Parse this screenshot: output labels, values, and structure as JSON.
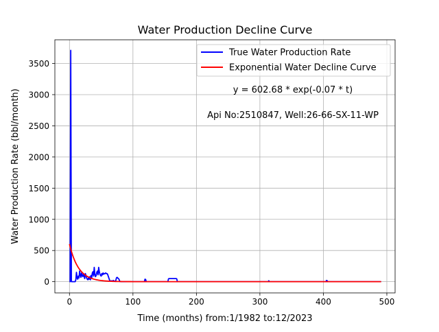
{
  "chart_data": {
    "type": "line",
    "title": "Water Production Decline Curve",
    "xlabel": "Time (months) from:1/1982 to:12/2023",
    "ylabel": "Water Production Rate (bbl/month)",
    "xlim": [
      -23,
      513
    ],
    "ylim": [
      -180,
      3880
    ],
    "xticks": [
      0,
      100,
      200,
      300,
      400,
      500
    ],
    "yticks": [
      0,
      500,
      1000,
      1500,
      2000,
      2500,
      3000,
      3500
    ],
    "grid": true,
    "legend_position": "top-right",
    "annotations": [
      "y = 602.68 * exp(-0.07 * t)",
      "Api No:2510847, Well:26-66-SX-11-WP"
    ],
    "series": [
      {
        "name": "True Water Production Rate",
        "color": "#0000ff",
        "points": [
          [
            0,
            0
          ],
          [
            1,
            0
          ],
          [
            2,
            3710
          ],
          [
            3,
            0
          ],
          [
            4,
            0
          ],
          [
            5,
            0
          ],
          [
            6,
            0
          ],
          [
            7,
            0
          ],
          [
            8,
            0
          ],
          [
            9,
            0
          ],
          [
            10,
            30
          ],
          [
            11,
            150
          ],
          [
            12,
            60
          ],
          [
            13,
            40
          ],
          [
            14,
            90
          ],
          [
            15,
            60
          ],
          [
            16,
            170
          ],
          [
            17,
            110
          ],
          [
            18,
            70
          ],
          [
            19,
            140
          ],
          [
            20,
            100
          ],
          [
            21,
            80
          ],
          [
            22,
            130
          ],
          [
            23,
            90
          ],
          [
            24,
            50
          ],
          [
            25,
            130
          ],
          [
            26,
            100
          ],
          [
            27,
            60
          ],
          [
            28,
            40
          ],
          [
            29,
            30
          ],
          [
            30,
            60
          ],
          [
            31,
            40
          ],
          [
            32,
            80
          ],
          [
            33,
            30
          ],
          [
            34,
            100
          ],
          [
            35,
            60
          ],
          [
            36,
            140
          ],
          [
            37,
            160
          ],
          [
            38,
            90
          ],
          [
            39,
            230
          ],
          [
            40,
            120
          ],
          [
            41,
            80
          ],
          [
            42,
            100
          ],
          [
            43,
            150
          ],
          [
            44,
            170
          ],
          [
            45,
            110
          ],
          [
            46,
            230
          ],
          [
            47,
            160
          ],
          [
            48,
            120
          ],
          [
            49,
            100
          ],
          [
            50,
            90
          ],
          [
            51,
            130
          ],
          [
            52,
            110
          ],
          [
            53,
            140
          ],
          [
            54,
            120
          ],
          [
            55,
            130
          ],
          [
            56,
            130
          ],
          [
            57,
            140
          ],
          [
            58,
            130
          ],
          [
            59,
            130
          ],
          [
            60,
            120
          ],
          [
            61,
            90
          ],
          [
            62,
            60
          ],
          [
            63,
            30
          ],
          [
            64,
            10
          ],
          [
            65,
            10
          ],
          [
            66,
            15
          ],
          [
            67,
            10
          ],
          [
            68,
            10
          ],
          [
            69,
            20
          ],
          [
            70,
            10
          ],
          [
            71,
            10
          ],
          [
            72,
            5
          ],
          [
            73,
            20
          ],
          [
            74,
            60
          ],
          [
            75,
            70
          ],
          [
            76,
            60
          ],
          [
            77,
            50
          ],
          [
            78,
            40
          ],
          [
            79,
            10
          ],
          [
            80,
            5
          ],
          [
            82,
            0
          ],
          [
            90,
            0
          ],
          [
            100,
            0
          ],
          [
            110,
            0
          ],
          [
            118,
            0
          ],
          [
            119,
            40
          ],
          [
            120,
            35
          ],
          [
            121,
            0
          ],
          [
            130,
            0
          ],
          [
            140,
            0
          ],
          [
            150,
            0
          ],
          [
            155,
            0
          ],
          [
            156,
            45
          ],
          [
            157,
            50
          ],
          [
            168,
            50
          ],
          [
            169,
            45
          ],
          [
            170,
            0
          ],
          [
            180,
            0
          ],
          [
            200,
            0
          ],
          [
            250,
            0
          ],
          [
            300,
            0
          ],
          [
            313,
            0
          ],
          [
            314,
            15
          ],
          [
            315,
            0
          ],
          [
            350,
            0
          ],
          [
            400,
            0
          ],
          [
            404,
            0
          ],
          [
            405,
            20
          ],
          [
            406,
            15
          ],
          [
            407,
            0
          ],
          [
            450,
            0
          ],
          [
            491,
            0
          ]
        ]
      },
      {
        "name": "Exponential Water Decline Curve",
        "color": "#ff0000",
        "function": {
          "a": 602.68,
          "b": -0.07,
          "t_start": 0,
          "t_end": 491
        }
      }
    ]
  }
}
